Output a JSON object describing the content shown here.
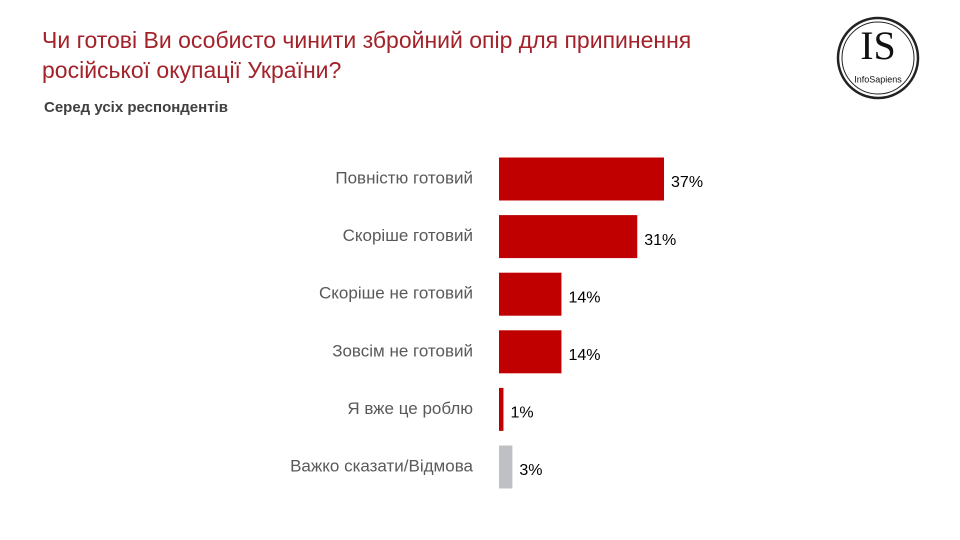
{
  "chart_data": {
    "type": "bar",
    "orientation": "horizontal",
    "title": [
      "Чи готові Ви особисто чинити збройний опір для припинення",
      "російської окупації України?"
    ],
    "subtitle": "Серед усіх респондентів",
    "categories": [
      "Повністю готовий",
      "Скоріше готовий",
      "Скоріше не готовий",
      "Зовсім не готовий",
      "Я вже це роблю",
      "Важко сказати/Відмова"
    ],
    "values": [
      37,
      31,
      14,
      14,
      1,
      3
    ],
    "value_labels": [
      "37%",
      "31%",
      "14%",
      "14%",
      "1%",
      "3%"
    ],
    "colors": [
      "#c00000",
      "#c00000",
      "#c00000",
      "#c00000",
      "#c00000",
      "#bfc0c4"
    ]
  },
  "logo": {
    "mark": "IS",
    "name": "InfoSapiens"
  }
}
